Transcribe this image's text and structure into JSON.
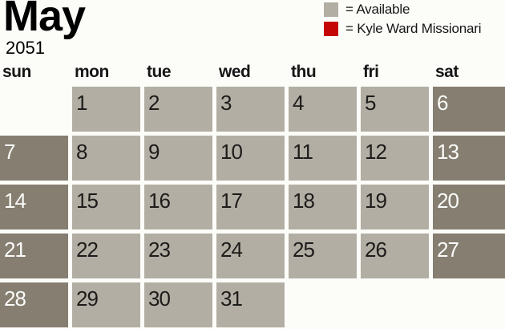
{
  "title": {
    "month": "May",
    "year": "2051"
  },
  "legend": {
    "items": [
      {
        "name": "available",
        "color": "#b3aea4",
        "label": "= Available"
      },
      {
        "name": "kyle-ward-missionaries",
        "color": "#c40606",
        "label": "= Kyle Ward Missionari"
      }
    ]
  },
  "calendar": {
    "day_headers": [
      "sun",
      "mon",
      "tue",
      "wed",
      "thu",
      "fri",
      "sat"
    ],
    "weeks": [
      [
        null,
        1,
        2,
        3,
        4,
        5,
        6
      ],
      [
        7,
        8,
        9,
        10,
        11,
        12,
        13
      ],
      [
        14,
        15,
        16,
        17,
        18,
        19,
        20
      ],
      [
        21,
        22,
        23,
        24,
        25,
        26,
        27
      ],
      [
        28,
        29,
        30,
        31,
        null,
        null,
        null
      ]
    ]
  },
  "colors": {
    "weekday_cell": "#b3aea4",
    "weekend_cell": "#857e71",
    "weekday_text": "#1d1c1a",
    "weekend_text": "#fbfbf8",
    "background": "#fcfdf9",
    "header_text": "#161616"
  }
}
